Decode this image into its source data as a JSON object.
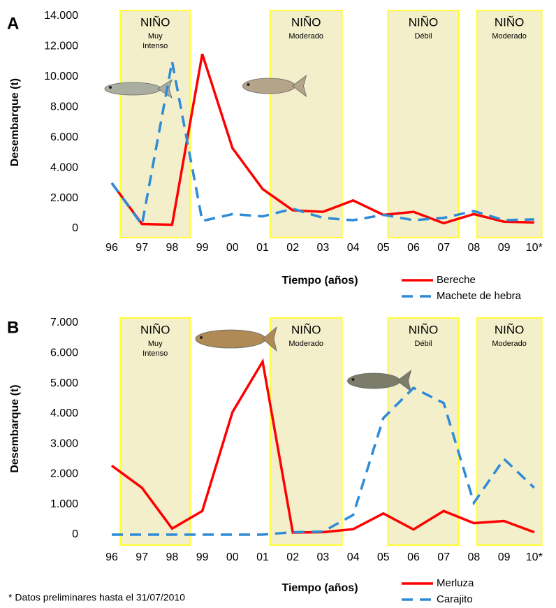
{
  "chart_data": [
    {
      "type": "line",
      "panel_label": "A",
      "y_label": "Desembarque (t)",
      "x_label": "Tiempo (años)",
      "categories": [
        "96",
        "97",
        "98",
        "99",
        "00",
        "01",
        "02",
        "03",
        "04",
        "05",
        "06",
        "07",
        "08",
        "09",
        "10*"
      ],
      "ylim": [
        0,
        14000
      ],
      "yticks": [
        0,
        {
          "value": 2000,
          "label": "2.000"
        },
        {
          "value": 4000,
          "label": "4.000"
        },
        {
          "value": 6000,
          "label": "6.000"
        },
        {
          "value": 8000,
          "label": "8.000"
        },
        {
          "value": 10000,
          "label": "10.000"
        },
        {
          "value": 12000,
          "label": "12.000"
        },
        {
          "value": 14000,
          "label": "14.000"
        }
      ],
      "annotations": [
        {
          "text": "NIÑO",
          "sub": [
            "Muy",
            "Intenso"
          ]
        },
        {
          "text": "NIÑO",
          "sub": [
            "Moderado"
          ]
        },
        {
          "text": "NIÑO",
          "sub": [
            "Débil"
          ]
        },
        {
          "text": "NIÑO",
          "sub": [
            "Moderado"
          ]
        }
      ],
      "series": [
        {
          "name": "Bereche",
          "color": "#ff0000",
          "dash": false,
          "values": [
            3000,
            300,
            250,
            11500,
            5300,
            2600,
            1200,
            1100,
            1850,
            900,
            1100,
            350,
            950,
            450,
            400
          ]
        },
        {
          "name": "Machete de hebra",
          "color": "#2e8bd6",
          "dash": true,
          "values": [
            3000,
            250,
            11000,
            500,
            950,
            800,
            1300,
            700,
            550,
            900,
            550,
            700,
            1150,
            550,
            600
          ]
        }
      ]
    },
    {
      "type": "line",
      "panel_label": "B",
      "y_label": "Desembarque (t)",
      "x_label": "Tiempo (años)",
      "categories": [
        "96",
        "97",
        "98",
        "99",
        "00",
        "01",
        "02",
        "03",
        "04",
        "05",
        "06",
        "07",
        "08",
        "09",
        "10*"
      ],
      "ylim": [
        0,
        7000
      ],
      "yticks": [
        0,
        {
          "value": 1000,
          "label": "1.000"
        },
        {
          "value": 2000,
          "label": "2.000"
        },
        {
          "value": 3000,
          "label": "3.000"
        },
        {
          "value": 4000,
          "label": "4.000"
        },
        {
          "value": 5000,
          "label": "5.000"
        },
        {
          "value": 6000,
          "label": "6.000"
        },
        {
          "value": 7000,
          "label": "7.000"
        }
      ],
      "annotations": [
        {
          "text": "NIÑO",
          "sub": [
            "Muy",
            "Intenso"
          ]
        },
        {
          "text": "NIÑO",
          "sub": [
            "Moderado"
          ]
        },
        {
          "text": "NIÑO",
          "sub": [
            "Débil"
          ]
        },
        {
          "text": "NIÑO",
          "sub": [
            "Moderado"
          ]
        }
      ],
      "series": [
        {
          "name": "Merluza",
          "color": "#ff0000",
          "dash": false,
          "values": [
            2280,
            1550,
            200,
            780,
            4050,
            5720,
            70,
            80,
            180,
            700,
            170,
            780,
            380,
            450,
            80
          ]
        },
        {
          "name": "Carajito",
          "color": "#2e8bd6",
          "dash": true,
          "values": [
            0,
            0,
            0,
            0,
            0,
            0,
            80,
            100,
            650,
            3850,
            4850,
            4350,
            1050,
            2500,
            1550
          ]
        }
      ]
    }
  ],
  "footnote": "* Datos preliminares hasta el 31/07/2010"
}
